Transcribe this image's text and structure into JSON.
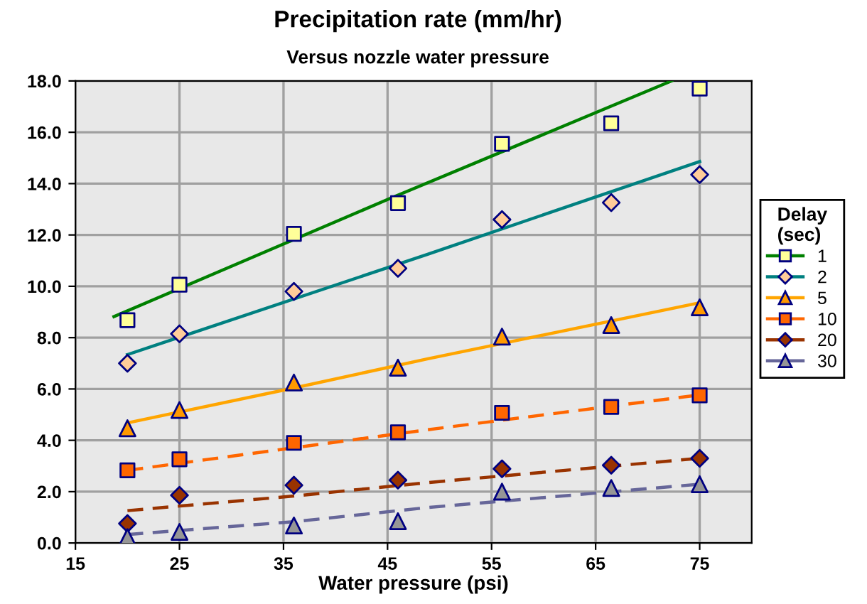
{
  "chart_data": {
    "type": "scatter",
    "title": "Precipitation rate (mm/hr)",
    "subtitle": "Versus nozzle water pressure",
    "xlabel": "Water pressure (psi)",
    "legend_title": "Delay\n(sec)",
    "x": [
      20,
      25,
      36,
      46,
      56,
      66.5,
      75
    ],
    "series": [
      {
        "name": "1",
        "marker": "square",
        "color": "#ffff99",
        "values": [
          8.68,
          10.06,
          12.04,
          13.24,
          15.55,
          16.35,
          17.7
        ]
      },
      {
        "name": "2",
        "marker": "diamond",
        "color": "#ffcc99",
        "values": [
          7.0,
          8.15,
          9.8,
          10.7,
          12.6,
          13.26,
          14.35
        ]
      },
      {
        "name": "5",
        "marker": "triangle",
        "color": "#ff9900",
        "values": [
          4.47,
          5.18,
          6.25,
          6.83,
          8.04,
          8.49,
          9.18
        ]
      },
      {
        "name": "10",
        "marker": "square",
        "color": "#ff6600",
        "values": [
          2.83,
          3.26,
          3.9,
          4.31,
          5.07,
          5.3,
          5.75
        ]
      },
      {
        "name": "20",
        "marker": "diamond",
        "color": "#993300",
        "values": [
          0.76,
          1.86,
          2.25,
          2.45,
          2.89,
          3.03,
          3.3
        ]
      },
      {
        "name": "30",
        "marker": "triangle",
        "color": "#969696",
        "values": [
          0.23,
          0.43,
          0.68,
          0.85,
          2.0,
          2.14,
          2.29
        ]
      },
      {
        "type": "line",
        "line_style": "solid",
        "color": "#008000",
        "x": [
          18.7,
          45,
          72.3
        ],
        "values": [
          8.82,
          13.38,
          18.0
        ]
      },
      {
        "type": "line",
        "line_style": "solid",
        "color": "#008080",
        "x": [
          20,
          48.8,
          75
        ],
        "values": [
          7.34,
          11.24,
          14.86
        ]
      },
      {
        "type": "line",
        "line_style": "solid",
        "color": "#ffa500",
        "x": [
          20,
          36,
          48.8,
          75
        ],
        "values": [
          4.68,
          6.04,
          7.17,
          9.36
        ]
      },
      {
        "type": "line",
        "line_style": "dashed",
        "color": "#ff6600",
        "x": [
          20,
          36,
          48.8,
          75
        ],
        "values": [
          2.83,
          3.71,
          4.41,
          5.77
        ]
      },
      {
        "type": "line",
        "line_style": "dashed",
        "color": "#993300",
        "x": [
          20,
          36,
          48.8,
          75
        ],
        "values": [
          1.26,
          1.83,
          2.35,
          3.3
        ]
      },
      {
        "type": "line",
        "line_style": "dashed",
        "color": "#666699",
        "x": [
          20,
          36,
          48.8,
          75
        ],
        "values": [
          0.33,
          0.83,
          1.38,
          2.29
        ]
      }
    ],
    "xlim": [
      15,
      80
    ],
    "xticks": [
      15,
      25,
      35,
      45,
      55,
      65,
      75
    ],
    "ylim": [
      0,
      18
    ],
    "yticks": [
      {
        "value": 0,
        "label": "0.0"
      },
      {
        "value": 2,
        "label": "2.0"
      },
      {
        "value": 4,
        "label": "4.0"
      },
      {
        "value": 6,
        "label": "6.0"
      },
      {
        "value": 8,
        "label": "8.0"
      },
      {
        "value": 10,
        "label": "10.0"
      },
      {
        "value": 12,
        "label": "12.0"
      },
      {
        "value": 14,
        "label": "14.0"
      },
      {
        "value": 16,
        "label": "16.0"
      },
      {
        "value": 18,
        "label": "18.0"
      }
    ],
    "grid": true,
    "legend": "right"
  }
}
